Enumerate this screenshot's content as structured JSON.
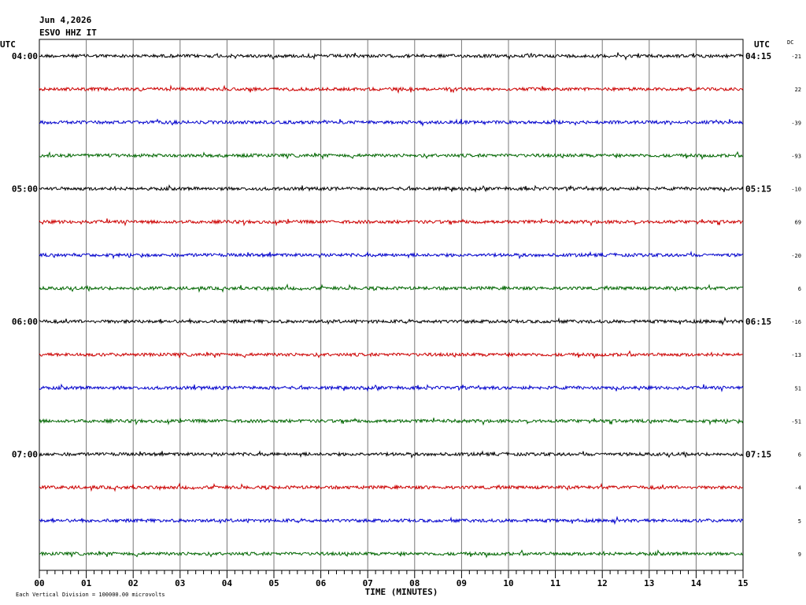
{
  "header": {
    "date": "Jun 4,2026",
    "station": "ESVO HHZ IT"
  },
  "left_axis": {
    "title": "UTC",
    "labels": [
      "04:00",
      "05:00",
      "06:00",
      "07:00"
    ]
  },
  "right_axis": {
    "title": "UTC",
    "labels": [
      "04:15",
      "05:15",
      "06:15",
      "07:15"
    ]
  },
  "dc": {
    "title": "DC",
    "offsets": [
      "-21",
      "22",
      "-39",
      "-93",
      "-10",
      "69",
      "-20",
      "6",
      "-16",
      "-13",
      "51",
      "-51",
      "6",
      "-4",
      "5",
      "9"
    ]
  },
  "trace_colors": [
    "#000000",
    "#cc0000",
    "#0000cc",
    "#006600"
  ],
  "x_axis": {
    "ticks": [
      "00",
      "01",
      "02",
      "03",
      "04",
      "05",
      "06",
      "07",
      "08",
      "09",
      "10",
      "11",
      "12",
      "13",
      "14",
      "15"
    ],
    "label": "TIME (MINUTES)"
  },
  "footer": "Each Vertical Division = 100000.00 microvolts"
}
